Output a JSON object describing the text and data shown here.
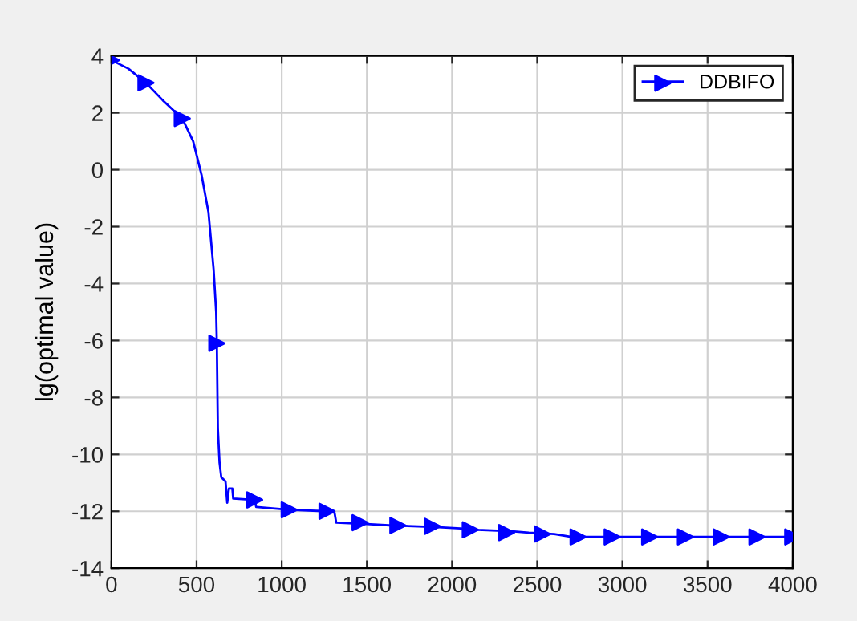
{
  "chart_data": {
    "type": "line",
    "ylabel": "lg(optimal value)",
    "xlim": [
      0,
      4000
    ],
    "ylim": [
      -14,
      4
    ],
    "xticks": [
      0,
      500,
      1000,
      1500,
      2000,
      2500,
      3000,
      3500,
      4000
    ],
    "yticks": [
      -14,
      -12,
      -10,
      -8,
      -6,
      -4,
      -2,
      0,
      2,
      4
    ],
    "grid": true,
    "legend": "top right",
    "series": [
      {
        "name": "DDBIFO",
        "color": "#0000ff",
        "marker": "none",
        "x": [
          0,
          100,
          203,
          300,
          416,
          480,
          530,
          570,
          600,
          615,
          619,
          625,
          635,
          645,
          670,
          680,
          690,
          710,
          715,
          841,
          850,
          1044,
          1266,
          1310,
          1320,
          1500,
          1650,
          1900,
          2050,
          2150,
          2350,
          2450,
          2600,
          2700,
          4000
        ],
        "values": [
          3.85,
          3.55,
          3.05,
          2.45,
          1.8,
          1.0,
          -0.2,
          -1.5,
          -3.5,
          -5.0,
          -6.1,
          -9.1,
          -10.3,
          -10.8,
          -10.95,
          -11.7,
          -11.2,
          -11.2,
          -11.55,
          -11.6,
          -11.85,
          -11.95,
          -12.0,
          -12.05,
          -12.4,
          -12.45,
          -12.5,
          -12.55,
          -12.6,
          -12.65,
          -12.7,
          -12.75,
          -12.8,
          -12.9,
          -12.9
        ]
      },
      {
        "type": "scatter",
        "color": "#0000ff",
        "marker": "triangle",
        "x": [
          0,
          203,
          416,
          619,
          841,
          1044,
          1266,
          1460,
          1682,
          1885,
          2107,
          2320,
          2530,
          2740,
          2940,
          3160,
          3370,
          3580,
          3790,
          4000
        ],
        "values": [
          3.85,
          3.05,
          1.8,
          -6.1,
          -11.6,
          -11.95,
          -12.0,
          -12.4,
          -12.5,
          -12.53,
          -12.65,
          -12.75,
          -12.8,
          -12.9,
          -12.9,
          -12.9,
          -12.9,
          -12.9,
          -12.9,
          -12.9
        ]
      }
    ]
  }
}
